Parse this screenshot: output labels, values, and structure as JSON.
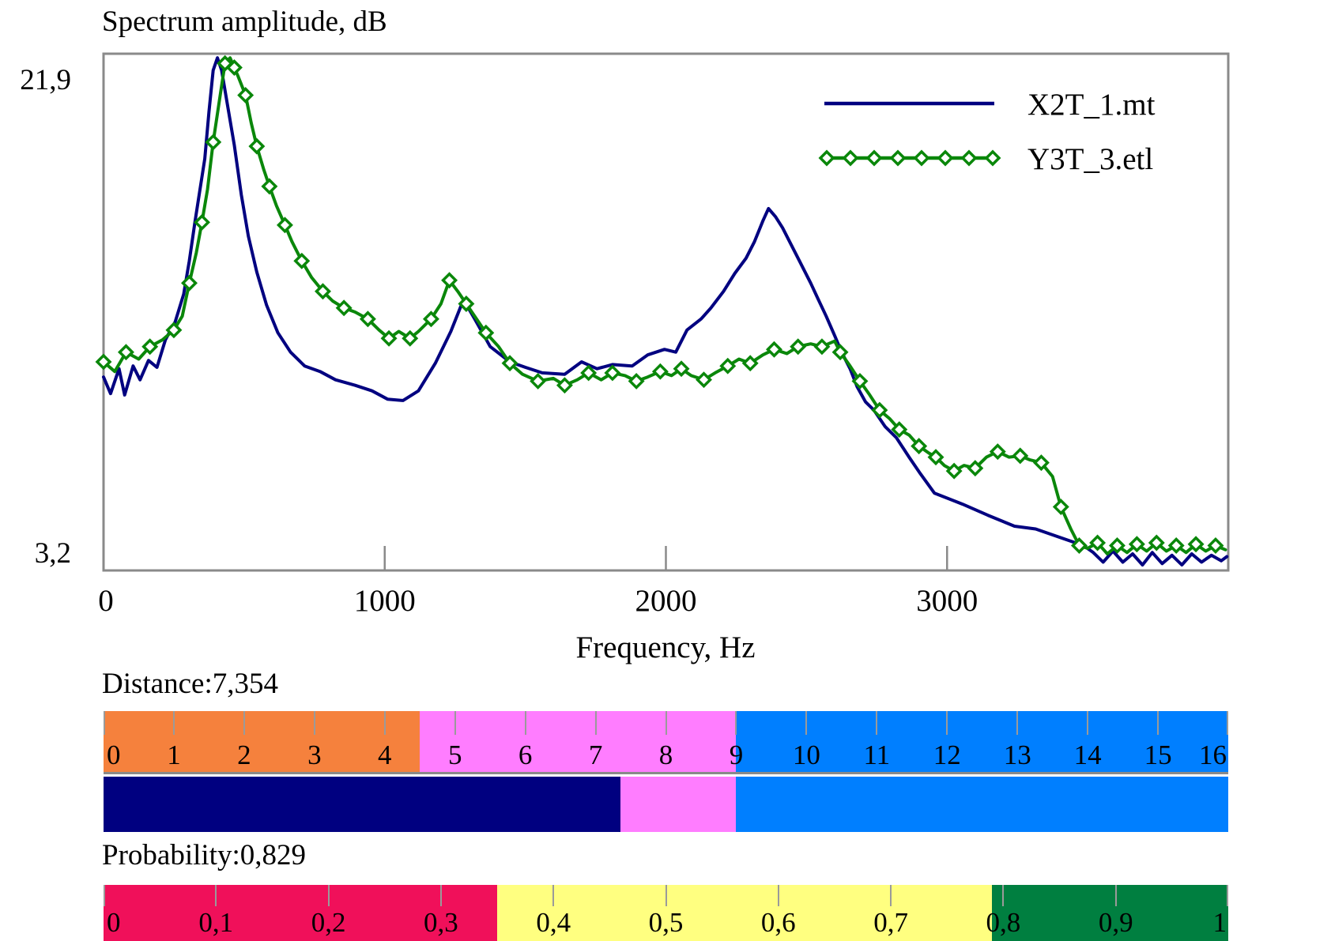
{
  "title": "Spectrum amplitude, dB",
  "colors": {
    "navy": "#000080",
    "green": "#0a870a",
    "frame_gray": "#8a8a8a",
    "orange": "#f5813d",
    "magenta": "#ff7dff",
    "blue": "#007fff",
    "crimson": "#f0105a",
    "yellow": "#ffff80",
    "dark_green": "#007f40"
  },
  "chart": {
    "y_axis": {
      "max_label": "21,9",
      "min_label": "3,2"
    },
    "x_axis": {
      "label": "Frequency, Hz",
      "tick_labels": [
        "0",
        "1000",
        "2000",
        "3000"
      ],
      "tick_values": [
        0,
        1000,
        2000,
        3000
      ]
    },
    "legend": [
      {
        "label": "X2T_1.mt",
        "marker": "line"
      },
      {
        "label": "Y3T_3.etl",
        "marker": "diamond-line"
      }
    ]
  },
  "chart_data": {
    "type": "line",
    "title": "Spectrum amplitude, dB",
    "xlabel": "Frequency, Hz",
    "ylabel": "Spectrum amplitude, dB",
    "x_range": [
      0,
      4000
    ],
    "y_range": [
      3.2,
      21.9
    ],
    "grid": false,
    "legend_position": "top-right",
    "series": [
      {
        "name": "X2T_1.mt",
        "color": "#000080",
        "marker": "none",
        "points": [
          [
            0,
            10.2
          ],
          [
            25,
            9.6
          ],
          [
            55,
            10.5
          ],
          [
            75,
            9.55
          ],
          [
            105,
            10.6
          ],
          [
            130,
            10.1
          ],
          [
            160,
            10.8
          ],
          [
            190,
            10.55
          ],
          [
            220,
            11.55
          ],
          [
            255,
            12.2
          ],
          [
            285,
            13.2
          ],
          [
            305,
            14.4
          ],
          [
            325,
            15.8
          ],
          [
            340,
            16.8
          ],
          [
            360,
            18.1
          ],
          [
            375,
            19.8
          ],
          [
            390,
            21.3
          ],
          [
            405,
            21.75
          ],
          [
            420,
            21.3
          ],
          [
            440,
            20.1
          ],
          [
            465,
            18.6
          ],
          [
            490,
            16.8
          ],
          [
            515,
            15.3
          ],
          [
            545,
            14.0
          ],
          [
            580,
            12.8
          ],
          [
            620,
            11.8
          ],
          [
            665,
            11.1
          ],
          [
            715,
            10.6
          ],
          [
            770,
            10.4
          ],
          [
            825,
            10.1
          ],
          [
            895,
            9.9
          ],
          [
            955,
            9.7
          ],
          [
            1010,
            9.4
          ],
          [
            1065,
            9.35
          ],
          [
            1120,
            9.7
          ],
          [
            1180,
            10.7
          ],
          [
            1235,
            11.85
          ],
          [
            1280,
            13.0
          ],
          [
            1320,
            12.3
          ],
          [
            1375,
            11.3
          ],
          [
            1445,
            10.75
          ],
          [
            1500,
            10.55
          ],
          [
            1560,
            10.35
          ],
          [
            1640,
            10.3
          ],
          [
            1700,
            10.75
          ],
          [
            1755,
            10.5
          ],
          [
            1810,
            10.65
          ],
          [
            1880,
            10.6
          ],
          [
            1935,
            11.0
          ],
          [
            1995,
            11.2
          ],
          [
            2035,
            11.1
          ],
          [
            2075,
            11.9
          ],
          [
            2125,
            12.3
          ],
          [
            2160,
            12.7
          ],
          [
            2205,
            13.3
          ],
          [
            2245,
            13.95
          ],
          [
            2285,
            14.5
          ],
          [
            2315,
            15.1
          ],
          [
            2345,
            15.85
          ],
          [
            2365,
            16.3
          ],
          [
            2390,
            16.0
          ],
          [
            2415,
            15.6
          ],
          [
            2445,
            15.0
          ],
          [
            2475,
            14.4
          ],
          [
            2515,
            13.6
          ],
          [
            2540,
            13.05
          ],
          [
            2570,
            12.4
          ],
          [
            2600,
            11.7
          ],
          [
            2625,
            11.1
          ],
          [
            2655,
            10.5
          ],
          [
            2680,
            9.85
          ],
          [
            2710,
            9.3
          ],
          [
            2740,
            9.0
          ],
          [
            2780,
            8.4
          ],
          [
            2820,
            8.0
          ],
          [
            2865,
            7.3
          ],
          [
            2905,
            6.7
          ],
          [
            2955,
            6.0
          ],
          [
            3055,
            5.6
          ],
          [
            3145,
            5.2
          ],
          [
            3240,
            4.8
          ],
          [
            3315,
            4.7
          ],
          [
            3400,
            4.4
          ],
          [
            3485,
            4.1
          ],
          [
            3520,
            3.85
          ],
          [
            3555,
            3.5
          ],
          [
            3590,
            3.9
          ],
          [
            3625,
            3.5
          ],
          [
            3660,
            3.8
          ],
          [
            3695,
            3.4
          ],
          [
            3730,
            3.85
          ],
          [
            3765,
            3.45
          ],
          [
            3800,
            3.75
          ],
          [
            3835,
            3.4
          ],
          [
            3870,
            3.8
          ],
          [
            3905,
            3.5
          ],
          [
            3940,
            3.75
          ],
          [
            3975,
            3.55
          ],
          [
            3995,
            3.7
          ]
        ]
      },
      {
        "name": "Y3T_3.etl",
        "color": "#0a870a",
        "marker": "diamond",
        "points": [
          [
            0,
            10.75
          ],
          [
            40,
            10.4
          ],
          [
            80,
            11.1
          ],
          [
            125,
            10.85
          ],
          [
            165,
            11.3
          ],
          [
            210,
            11.55
          ],
          [
            250,
            11.9
          ],
          [
            280,
            12.4
          ],
          [
            305,
            13.6
          ],
          [
            330,
            14.7
          ],
          [
            350,
            15.8
          ],
          [
            370,
            17.0
          ],
          [
            390,
            18.7
          ],
          [
            415,
            20.4
          ],
          [
            432,
            21.55
          ],
          [
            450,
            21.75
          ],
          [
            465,
            21.4
          ],
          [
            478,
            21.1
          ],
          [
            505,
            20.4
          ],
          [
            525,
            19.4
          ],
          [
            545,
            18.55
          ],
          [
            570,
            17.7
          ],
          [
            590,
            17.1
          ],
          [
            615,
            16.4
          ],
          [
            645,
            15.7
          ],
          [
            670,
            15.1
          ],
          [
            705,
            14.4
          ],
          [
            740,
            13.8
          ],
          [
            780,
            13.3
          ],
          [
            815,
            12.95
          ],
          [
            855,
            12.7
          ],
          [
            895,
            12.55
          ],
          [
            940,
            12.3
          ],
          [
            980,
            11.9
          ],
          [
            1015,
            11.6
          ],
          [
            1050,
            11.85
          ],
          [
            1090,
            11.6
          ],
          [
            1120,
            11.85
          ],
          [
            1165,
            12.3
          ],
          [
            1200,
            12.85
          ],
          [
            1230,
            13.7
          ],
          [
            1260,
            13.3
          ],
          [
            1290,
            12.85
          ],
          [
            1320,
            12.4
          ],
          [
            1360,
            11.8
          ],
          [
            1405,
            11.3
          ],
          [
            1445,
            10.7
          ],
          [
            1490,
            10.3
          ],
          [
            1545,
            10.05
          ],
          [
            1600,
            10.15
          ],
          [
            1640,
            9.9
          ],
          [
            1685,
            10.1
          ],
          [
            1725,
            10.35
          ],
          [
            1770,
            10.1
          ],
          [
            1810,
            10.35
          ],
          [
            1855,
            10.25
          ],
          [
            1895,
            10.05
          ],
          [
            1935,
            10.2
          ],
          [
            1980,
            10.4
          ],
          [
            2020,
            10.25
          ],
          [
            2055,
            10.5
          ],
          [
            2090,
            10.25
          ],
          [
            2135,
            10.1
          ],
          [
            2175,
            10.35
          ],
          [
            2220,
            10.6
          ],
          [
            2260,
            10.85
          ],
          [
            2300,
            10.7
          ],
          [
            2345,
            11.0
          ],
          [
            2385,
            11.2
          ],
          [
            2430,
            11.05
          ],
          [
            2470,
            11.3
          ],
          [
            2515,
            11.4
          ],
          [
            2555,
            11.3
          ],
          [
            2600,
            11.5
          ],
          [
            2620,
            11.1
          ],
          [
            2655,
            10.6
          ],
          [
            2690,
            10.05
          ],
          [
            2725,
            9.55
          ],
          [
            2760,
            9.0
          ],
          [
            2795,
            8.7
          ],
          [
            2830,
            8.3
          ],
          [
            2865,
            8.1
          ],
          [
            2900,
            7.7
          ],
          [
            2935,
            7.45
          ],
          [
            2960,
            7.3
          ],
          [
            2990,
            7.0
          ],
          [
            3025,
            6.8
          ],
          [
            3060,
            7.0
          ],
          [
            3100,
            6.9
          ],
          [
            3140,
            7.3
          ],
          [
            3180,
            7.5
          ],
          [
            3220,
            7.3
          ],
          [
            3260,
            7.35
          ],
          [
            3295,
            7.2
          ],
          [
            3335,
            7.1
          ],
          [
            3375,
            6.6
          ],
          [
            3405,
            5.5
          ],
          [
            3440,
            4.7
          ],
          [
            3470,
            4.1
          ],
          [
            3500,
            4.0
          ],
          [
            3535,
            4.2
          ],
          [
            3570,
            3.8
          ],
          [
            3605,
            4.1
          ],
          [
            3640,
            3.85
          ],
          [
            3675,
            4.15
          ],
          [
            3710,
            3.9
          ],
          [
            3745,
            4.2
          ],
          [
            3780,
            3.9
          ],
          [
            3815,
            4.1
          ],
          [
            3850,
            3.85
          ],
          [
            3885,
            4.15
          ],
          [
            3920,
            3.9
          ],
          [
            3955,
            4.1
          ],
          [
            3990,
            3.95
          ]
        ]
      }
    ]
  },
  "distance": {
    "label": "Distance:7,354",
    "value": 7.354,
    "scale": {
      "min": 0,
      "max": 16,
      "tick_values": [
        0,
        1,
        2,
        3,
        4,
        5,
        6,
        7,
        8,
        9,
        10,
        11,
        12,
        13,
        14,
        15,
        16
      ],
      "tick_labels": [
        "0",
        "1",
        "2",
        "3",
        "4",
        "5",
        "6",
        "7",
        "8",
        "9",
        "10",
        "11",
        "12",
        "13",
        "14",
        "15",
        "16"
      ],
      "segments": [
        {
          "from": 0,
          "to": 4.5,
          "color": "#f5813d"
        },
        {
          "from": 4.5,
          "to": 9,
          "color": "#ff7dff"
        },
        {
          "from": 9,
          "to": 16,
          "color": "#007fff"
        }
      ]
    },
    "indicator": {
      "segments": [
        {
          "from": 0,
          "to": 7.354,
          "color": "#000080"
        },
        {
          "from": 7.354,
          "to": 9,
          "color": "#ff7dff"
        },
        {
          "from": 9,
          "to": 16,
          "color": "#007fff"
        }
      ]
    }
  },
  "probability": {
    "label": "Probability:0,829",
    "value": 0.829,
    "scale": {
      "min": 0,
      "max": 1,
      "tick_values": [
        0,
        0.1,
        0.2,
        0.3,
        0.4,
        0.5,
        0.6,
        0.7,
        0.8,
        0.9,
        1
      ],
      "tick_labels": [
        "0",
        "0,1",
        "0,2",
        "0,3",
        "0,4",
        "0,5",
        "0,6",
        "0,7",
        "0,8",
        "0,9",
        "1"
      ],
      "segments": [
        {
          "from": 0,
          "to": 0.35,
          "color": "#f0105a"
        },
        {
          "from": 0.35,
          "to": 0.79,
          "color": "#ffff80"
        },
        {
          "from": 0.79,
          "to": 1,
          "color": "#007f40"
        }
      ]
    }
  }
}
